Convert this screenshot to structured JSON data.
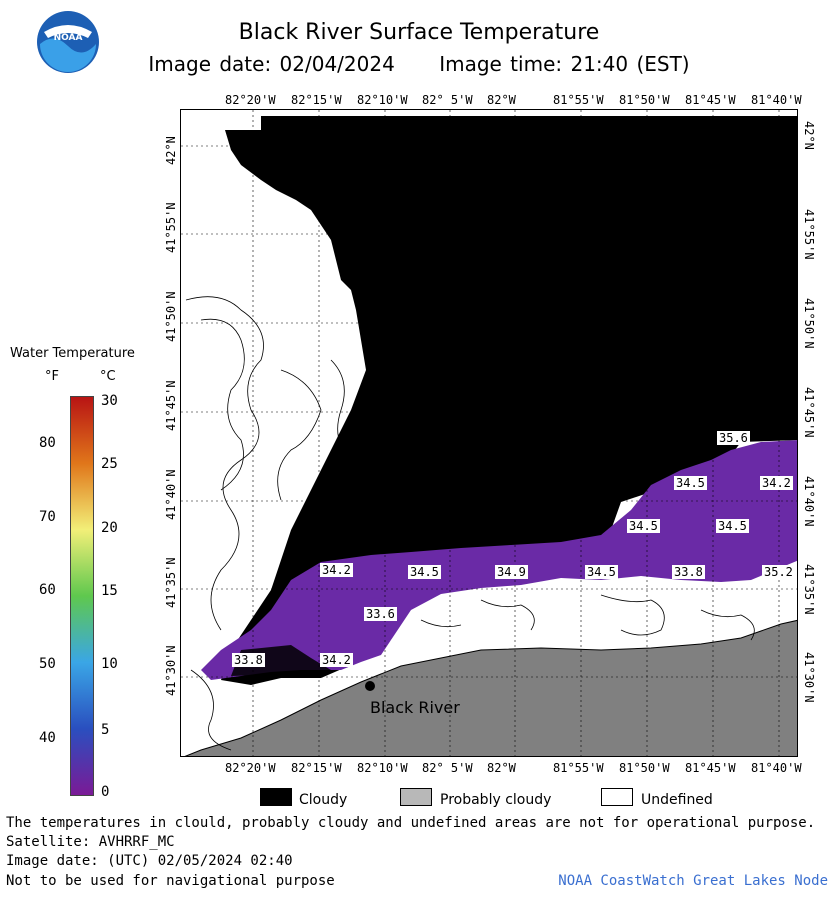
{
  "header": {
    "title": "Black River Surface Temperature",
    "image_date_label": "Image date: 02/04/2024",
    "image_time_label": "Image time: 21:40 (EST)",
    "logo_text": "NOAA"
  },
  "legend": {
    "title": "Water Temperature",
    "unit_f": "°F",
    "unit_c": "°C",
    "fahrenheit_ticks": [
      "80",
      "70",
      "60",
      "50",
      "40"
    ],
    "celsius_ticks": [
      "30",
      "25",
      "20",
      "15",
      "10",
      "5",
      "0"
    ],
    "colors": [
      "#b81414",
      "#e0761a",
      "#f2ef78",
      "#5fc84e",
      "#3aa6e6",
      "#2a4fbf",
      "#7b1a96"
    ]
  },
  "map": {
    "lon_labels": [
      "82°20'W",
      "82°15'W",
      "82°10'W",
      "82° 5'W",
      "82°W",
      "81°55'W",
      "81°50'W",
      "81°45'W",
      "81°40'W"
    ],
    "lat_labels": [
      "42°N",
      "41°55'N",
      "41°50'N",
      "41°45'N",
      "41°40'N",
      "41°35'N",
      "41°30'N"
    ],
    "place_label": "Black River",
    "temperature_labels": [
      "35.6",
      "34.5",
      "34.2",
      "34.5",
      "34.5",
      "34.2",
      "34.5",
      "34.9",
      "34.5",
      "33.8",
      "35.2",
      "33.6",
      "33.8",
      "34.2"
    ],
    "colors": {
      "cloudy": "#000000",
      "land": "#808080",
      "purple": "#6a2aa6",
      "undefined": "#ffffff"
    }
  },
  "key": {
    "cloudy": "Cloudy",
    "probably_cloudy": "Probably cloudy",
    "undefined": "Undefined"
  },
  "footer": {
    "disclaimer": "The temperatures in clould, probably cloudy and undefined areas are not for operational purpose.",
    "satellite": "Satellite: AVHRRF_MC",
    "utc_date": "Image date: (UTC) 02/05/2024  02:40",
    "nav_warning": "Not to be used for navigational purpose",
    "node": "NOAA CoastWatch Great Lakes Node"
  }
}
